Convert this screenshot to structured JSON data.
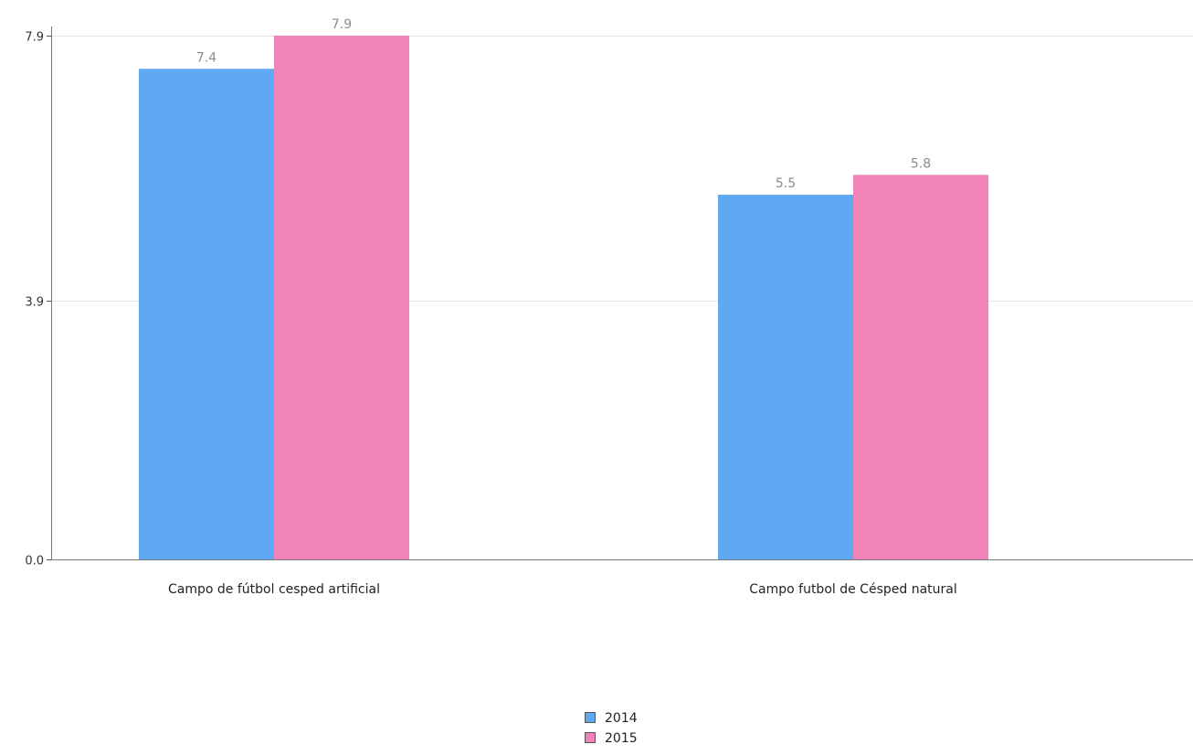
{
  "chart_data": {
    "type": "bar",
    "categories": [
      "Campo de fútbol cesped artificial",
      "Campo futbol de Césped natural"
    ],
    "series": [
      {
        "name": "2014",
        "values": [
          7.4,
          5.5
        ],
        "color": "#5fa8f2"
      },
      {
        "name": "2015",
        "values": [
          7.9,
          5.8
        ],
        "color": "#f283b8"
      }
    ],
    "value_labels": [
      [
        "7.4",
        "5.5"
      ],
      [
        "7.9",
        "5.8"
      ]
    ],
    "y_ticks": [
      0.0,
      3.9,
      7.9
    ],
    "y_tick_labels": [
      "0.0",
      "3.9",
      "7.9"
    ],
    "ylim": [
      0,
      7.9
    ],
    "grid": true,
    "legend_position": "bottom-center",
    "title": "",
    "xlabel": "",
    "ylabel": ""
  }
}
